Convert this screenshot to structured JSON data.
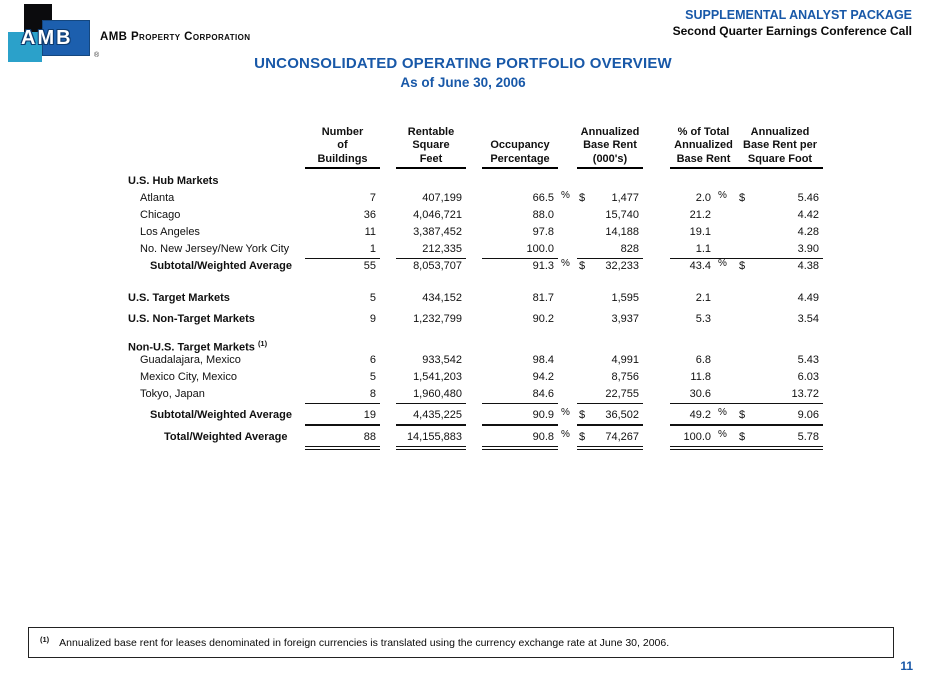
{
  "header": {
    "logo_monogram": "AMB",
    "logo_registered": "®",
    "company_name": "AMB Property Corporation",
    "package_title": "SUPPLEMENTAL ANALYST PACKAGE",
    "package_subtitle": "Second Quarter Earnings Conference Call"
  },
  "title": {
    "line1": "UNCONSOLIDATED OPERATING PORTFOLIO OVERVIEW",
    "line2": "As of June 30, 2006"
  },
  "colors": {
    "accent_blue": "#1858A8",
    "logo_blue": "#1C5FAE",
    "logo_teal": "#2BA1CA",
    "logo_black": "#0B0B0D"
  },
  "table": {
    "headers": {
      "buildings": [
        "Number",
        "of",
        "Buildings"
      ],
      "sqft": [
        "Rentable",
        "Square",
        "Feet"
      ],
      "occupancy": [
        "Occupancy",
        "Percentage"
      ],
      "rent": [
        "Annualized",
        "Base Rent",
        "(000's)"
      ],
      "pct_total": [
        "% of Total",
        "Annualized",
        "Base Rent"
      ],
      "rent_psf": [
        "Annualized",
        "Base Rent per",
        "Square Foot"
      ]
    },
    "rows": [
      {
        "type": "section",
        "label": "U.S. Hub Markets"
      },
      {
        "label": "Atlanta",
        "buildings": "7",
        "sqft": "407,199",
        "occ": "66.5",
        "occ_sign": "%",
        "d1": "$",
        "rent": "1,477",
        "tpct": "2.0",
        "tpct_sign": "%",
        "d2": "$",
        "rpsf": "5.46"
      },
      {
        "label": "Chicago",
        "buildings": "36",
        "sqft": "4,046,721",
        "occ": "88.0",
        "rent": "15,740",
        "tpct": "21.2",
        "rpsf": "4.42"
      },
      {
        "label": "Los Angeles",
        "buildings": "11",
        "sqft": "3,387,452",
        "occ": "97.8",
        "rent": "14,188",
        "tpct": "19.1",
        "rpsf": "4.28"
      },
      {
        "label": "No. New Jersey/New York City",
        "buildings": "1",
        "sqft": "212,335",
        "occ": "100.0",
        "rent": "828",
        "tpct": "1.1",
        "rpsf": "3.90"
      },
      {
        "label": "Subtotal/Weighted Average",
        "buildings": "55",
        "sqft": "8,053,707",
        "occ": "91.3",
        "occ_sign": "%",
        "d1": "$",
        "rent": "32,233",
        "tpct": "43.4",
        "tpct_sign": "%",
        "d2": "$",
        "rpsf": "4.38"
      },
      {
        "label": "U.S. Target Markets",
        "buildings": "5",
        "sqft": "434,152",
        "occ": "81.7",
        "rent": "1,595",
        "tpct": "2.1",
        "rpsf": "4.49"
      },
      {
        "label": "U.S. Non-Target Markets",
        "buildings": "9",
        "sqft": "1,232,799",
        "occ": "90.2",
        "rent": "3,937",
        "tpct": "5.3",
        "rpsf": "3.54"
      },
      {
        "type": "section",
        "label": "Non-U.S. Target Markets",
        "footnote_marker": "(1)"
      },
      {
        "label": "Guadalajara, Mexico",
        "buildings": "6",
        "sqft": "933,542",
        "occ": "98.4",
        "rent": "4,991",
        "tpct": "6.8",
        "rpsf": "5.43"
      },
      {
        "label": "Mexico City, Mexico",
        "buildings": "5",
        "sqft": "1,541,203",
        "occ": "94.2",
        "rent": "8,756",
        "tpct": "11.8",
        "rpsf": "6.03"
      },
      {
        "label": "Tokyo, Japan",
        "buildings": "8",
        "sqft": "1,960,480",
        "occ": "84.6",
        "rent": "22,755",
        "tpct": "30.6",
        "rpsf": "13.72"
      },
      {
        "label": "Subtotal/Weighted Average",
        "buildings": "19",
        "sqft": "4,435,225",
        "occ": "90.9",
        "occ_sign": "%",
        "d1": "$",
        "rent": "36,502",
        "tpct": "49.2",
        "tpct_sign": "%",
        "d2": "$",
        "rpsf": "9.06"
      },
      {
        "label": "Total/Weighted Average",
        "buildings": "88",
        "sqft": "14,155,883",
        "occ": "90.8",
        "occ_sign": "%",
        "d1": "$",
        "rent": "74,267",
        "tpct": "100.0",
        "tpct_sign": "%",
        "d2": "$",
        "rpsf": "5.78"
      }
    ]
  },
  "footnote": {
    "marker": "(1)",
    "text": "Annualized base rent for leases denominated in foreign currencies is translated using the currency exchange rate at June 30, 2006."
  },
  "page_number": "11"
}
